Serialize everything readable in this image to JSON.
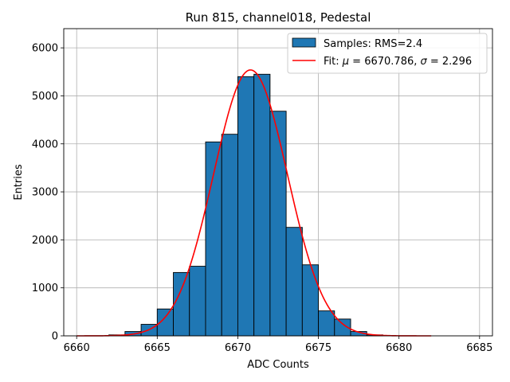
{
  "chart_data": {
    "type": "bar",
    "title": "Run 815, channel018, Pedestal",
    "xlabel": "ADC Counts",
    "ylabel": "Entries",
    "xlim": [
      6659.2,
      6685.8
    ],
    "ylim": [
      0,
      6400
    ],
    "xticks": [
      6660,
      6665,
      6670,
      6675,
      6680,
      6685
    ],
    "yticks": [
      0,
      1000,
      2000,
      3000,
      4000,
      5000,
      6000
    ],
    "grid": true,
    "legend_position": "top-right",
    "histogram": {
      "name": "Samples: RMS=2.4",
      "color": "#1f77b4",
      "edgecolor": "#000000",
      "bin_width": 1,
      "bins": [
        {
          "left": 6662,
          "count": 20
        },
        {
          "left": 6663,
          "count": 90
        },
        {
          "left": 6664,
          "count": 240
        },
        {
          "left": 6665,
          "count": 560
        },
        {
          "left": 6666,
          "count": 1320
        },
        {
          "left": 6667,
          "count": 1450
        },
        {
          "left": 6668,
          "count": 4040
        },
        {
          "left": 6669,
          "count": 4200
        },
        {
          "left": 6670,
          "count": 5400
        },
        {
          "left": 6671,
          "count": 5450
        },
        {
          "left": 6672,
          "count": 4680
        },
        {
          "left": 6673,
          "count": 2260
        },
        {
          "left": 6674,
          "count": 1480
        },
        {
          "left": 6675,
          "count": 520
        },
        {
          "left": 6676,
          "count": 350
        },
        {
          "left": 6677,
          "count": 90
        },
        {
          "left": 6678,
          "count": 20
        }
      ]
    },
    "fit": {
      "name_prefix": "Fit: ",
      "mu_symbol": "μ",
      "mu_text": " = 6670.786, ",
      "sigma_symbol": "σ",
      "sigma_text": " = 2.296",
      "color": "#ff0000",
      "mu": 6670.786,
      "sigma": 2.296,
      "amplitude": 5540,
      "x_range": [
        6660,
        6682
      ]
    }
  }
}
